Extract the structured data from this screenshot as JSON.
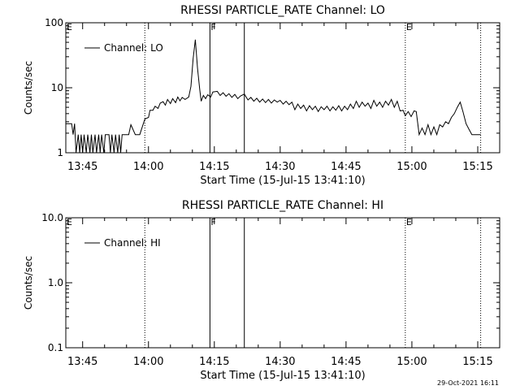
{
  "chart_data": [
    {
      "type": "line",
      "title": "RHESSI PARTICLE_RATE Channel: LO",
      "xlabel": "Start Time (15-Jul-15 13:41:10)",
      "ylabel": "Counts/sec",
      "y_scale": "log",
      "ylim": [
        1,
        100
      ],
      "xlim": [
        "13:41:10",
        "15:20:00"
      ],
      "x_ticks": [
        "13:45",
        "14:00",
        "14:15",
        "14:30",
        "14:45",
        "15:00",
        "15:15"
      ],
      "y_ticks": [
        "1",
        "10",
        "100"
      ],
      "legend": {
        "placement": "top-left",
        "label": "Channel: LO"
      },
      "markers": [
        {
          "label": "E",
          "x": "13:41:10",
          "style": "dotted"
        },
        {
          "label": "",
          "x": "13:59:10",
          "style": "dotted"
        },
        {
          "label": "F",
          "x": "14:14:00",
          "style": "solid"
        },
        {
          "label": "",
          "x": "14:21:50",
          "style": "solid"
        },
        {
          "label": "E",
          "x": "14:58:30",
          "style": "dotted"
        },
        {
          "label": "",
          "x": "15:15:40",
          "style": "dotted"
        }
      ],
      "series": [
        {
          "name": "Channel: LO",
          "points": [
            [
              "13:41:10",
              2.8
            ],
            [
              "13:42:30",
              2.8
            ],
            [
              "13:42:50",
              1.9
            ],
            [
              "13:43:10",
              2.8
            ],
            [
              "13:43:30",
              1
            ],
            [
              "13:44:00",
              1.9
            ],
            [
              "13:44:20",
              1
            ],
            [
              "13:44:40",
              1.9
            ],
            [
              "13:45:00",
              1
            ],
            [
              "13:45:20",
              1.9
            ],
            [
              "13:45:50",
              1
            ],
            [
              "13:46:10",
              1.9
            ],
            [
              "13:46:40",
              1
            ],
            [
              "13:47:00",
              1.9
            ],
            [
              "13:47:20",
              1
            ],
            [
              "13:47:50",
              1.9
            ],
            [
              "13:48:10",
              1
            ],
            [
              "13:48:40",
              1.9
            ],
            [
              "13:49:00",
              1
            ],
            [
              "13:49:20",
              1.9
            ],
            [
              "13:49:50",
              1
            ],
            [
              "13:50:10",
              1.9
            ],
            [
              "13:51:00",
              1.9
            ],
            [
              "13:51:20",
              1
            ],
            [
              "13:51:40",
              1.9
            ],
            [
              "13:52:10",
              1
            ],
            [
              "13:52:30",
              1.9
            ],
            [
              "13:53:00",
              1
            ],
            [
              "13:53:20",
              1.9
            ],
            [
              "13:53:40",
              1
            ],
            [
              "13:54:00",
              1.9
            ],
            [
              "13:55:30",
              1.9
            ],
            [
              "13:56:00",
              2.7
            ],
            [
              "13:57:00",
              1.9
            ],
            [
              "13:58:00",
              1.9
            ],
            [
              "13:59:10",
              3.3
            ],
            [
              "14:00:00",
              3.5
            ],
            [
              "14:00:20",
              4.5
            ],
            [
              "14:01:00",
              4.5
            ],
            [
              "14:01:30",
              5.2
            ],
            [
              "14:02:10",
              4.8
            ],
            [
              "14:02:40",
              5.8
            ],
            [
              "14:03:20",
              6.1
            ],
            [
              "14:03:50",
              5.4
            ],
            [
              "14:04:20",
              6.6
            ],
            [
              "14:05:00",
              5.7
            ],
            [
              "14:05:30",
              6.8
            ],
            [
              "14:06:10",
              5.9
            ],
            [
              "14:06:40",
              7.2
            ],
            [
              "14:07:10",
              6.3
            ],
            [
              "14:07:40",
              7.1
            ],
            [
              "14:08:20",
              6.6
            ],
            [
              "14:09:10",
              7.2
            ],
            [
              "14:09:40",
              10.5
            ],
            [
              "14:10:10",
              28
            ],
            [
              "14:10:40",
              55
            ],
            [
              "14:11:10",
              20
            ],
            [
              "14:11:40",
              9.5
            ],
            [
              "14:12:00",
              6.2
            ],
            [
              "14:12:30",
              7.6
            ],
            [
              "14:13:00",
              6.8
            ],
            [
              "14:13:30",
              7.8
            ],
            [
              "14:14:10",
              7.2
            ],
            [
              "14:14:40",
              8.6
            ],
            [
              "14:15:40",
              8.8
            ],
            [
              "14:16:20",
              7.6
            ],
            [
              "14:17:00",
              8.4
            ],
            [
              "14:17:40",
              7.4
            ],
            [
              "14:18:20",
              8.1
            ],
            [
              "14:19:00",
              7.1
            ],
            [
              "14:19:40",
              7.9
            ],
            [
              "14:20:20",
              6.8
            ],
            [
              "14:21:00",
              7.5
            ],
            [
              "14:21:50",
              8.0
            ],
            [
              "14:22:40",
              6.5
            ],
            [
              "14:23:20",
              7.1
            ],
            [
              "14:24:00",
              6.2
            ],
            [
              "14:24:40",
              6.9
            ],
            [
              "14:25:20",
              6.0
            ],
            [
              "14:26:00",
              6.7
            ],
            [
              "14:26:40",
              5.9
            ],
            [
              "14:27:20",
              6.6
            ],
            [
              "14:28:00",
              5.8
            ],
            [
              "14:28:40",
              6.5
            ],
            [
              "14:29:20",
              6.0
            ],
            [
              "14:30:00",
              6.4
            ],
            [
              "14:30:40",
              5.6
            ],
            [
              "14:31:20",
              6.2
            ],
            [
              "14:32:00",
              5.5
            ],
            [
              "14:32:40",
              6.0
            ],
            [
              "14:33:20",
              4.6
            ],
            [
              "14:34:00",
              5.6
            ],
            [
              "14:34:40",
              4.8
            ],
            [
              "14:35:20",
              5.4
            ],
            [
              "14:36:00",
              4.4
            ],
            [
              "14:36:40",
              5.3
            ],
            [
              "14:37:20",
              4.6
            ],
            [
              "14:38:00",
              5.2
            ],
            [
              "14:38:40",
              4.3
            ],
            [
              "14:39:20",
              5.1
            ],
            [
              "14:40:00",
              4.6
            ],
            [
              "14:40:40",
              5.2
            ],
            [
              "14:41:20",
              4.4
            ],
            [
              "14:42:00",
              5.1
            ],
            [
              "14:42:40",
              4.5
            ],
            [
              "14:43:20",
              5.3
            ],
            [
              "14:44:00",
              4.4
            ],
            [
              "14:44:40",
              5.2
            ],
            [
              "14:45:20",
              4.6
            ],
            [
              "14:46:00",
              5.6
            ],
            [
              "14:46:40",
              4.8
            ],
            [
              "14:47:20",
              6.2
            ],
            [
              "14:48:00",
              5.0
            ],
            [
              "14:48:40",
              6.0
            ],
            [
              "14:49:20",
              5.2
            ],
            [
              "14:50:00",
              5.8
            ],
            [
              "14:50:40",
              4.8
            ],
            [
              "14:51:20",
              6.4
            ],
            [
              "14:52:00",
              5.2
            ],
            [
              "14:52:40",
              6.0
            ],
            [
              "14:53:20",
              5.0
            ],
            [
              "14:54:00",
              6.2
            ],
            [
              "14:54:40",
              5.4
            ],
            [
              "14:55:20",
              6.6
            ],
            [
              "14:56:00",
              5.0
            ],
            [
              "14:56:40",
              6.2
            ],
            [
              "14:57:20",
              4.4
            ],
            [
              "14:58:00",
              4.5
            ],
            [
              "14:58:30",
              3.7
            ],
            [
              "14:59:10",
              4.3
            ],
            [
              "14:59:50",
              3.6
            ],
            [
              "15:00:30",
              4.4
            ],
            [
              "15:01:00",
              4.3
            ],
            [
              "15:01:40",
              1.9
            ],
            [
              "15:02:20",
              2.4
            ],
            [
              "15:03:00",
              1.9
            ],
            [
              "15:03:40",
              2.7
            ],
            [
              "15:04:20",
              1.9
            ],
            [
              "15:05:00",
              2.5
            ],
            [
              "15:05:40",
              1.9
            ],
            [
              "15:06:20",
              2.7
            ],
            [
              "15:07:00",
              2.5
            ],
            [
              "15:07:40",
              3.0
            ],
            [
              "15:08:20",
              2.8
            ],
            [
              "15:09:00",
              3.5
            ],
            [
              "15:09:40",
              4.0
            ],
            [
              "15:10:20",
              5.0
            ],
            [
              "15:11:00",
              6.0
            ],
            [
              "15:11:40",
              4.2
            ],
            [
              "15:12:20",
              2.8
            ],
            [
              "15:13:00",
              2.3
            ],
            [
              "15:13:40",
              1.9
            ],
            [
              "15:14:20",
              1.9
            ],
            [
              "15:15:00",
              1.9
            ],
            [
              "15:15:40",
              1.9
            ]
          ]
        }
      ]
    },
    {
      "type": "line",
      "title": "RHESSI PARTICLE_RATE Channel: HI",
      "xlabel": "Start Time (15-Jul-15 13:41:10)",
      "ylabel": "Counts/sec",
      "y_scale": "log",
      "ylim": [
        0.1,
        10
      ],
      "xlim": [
        "13:41:10",
        "15:20:00"
      ],
      "x_ticks": [
        "13:45",
        "14:00",
        "14:15",
        "14:30",
        "14:45",
        "15:00",
        "15:15"
      ],
      "y_ticks": [
        "0.1",
        "1.0",
        "10.0"
      ],
      "legend": {
        "placement": "top-left",
        "label": "Channel: HI"
      },
      "markers": [
        {
          "label": "E",
          "x": "13:41:10",
          "style": "dotted"
        },
        {
          "label": "",
          "x": "13:59:10",
          "style": "dotted"
        },
        {
          "label": "F",
          "x": "14:14:00",
          "style": "solid"
        },
        {
          "label": "",
          "x": "14:21:50",
          "style": "solid"
        },
        {
          "label": "E",
          "x": "14:58:30",
          "style": "dotted"
        },
        {
          "label": "",
          "x": "15:15:40",
          "style": "dotted"
        }
      ],
      "series": [
        {
          "name": "Channel: HI",
          "points": []
        }
      ]
    }
  ],
  "footer": {
    "timestamp": "29-Oct-2021 16:11"
  }
}
